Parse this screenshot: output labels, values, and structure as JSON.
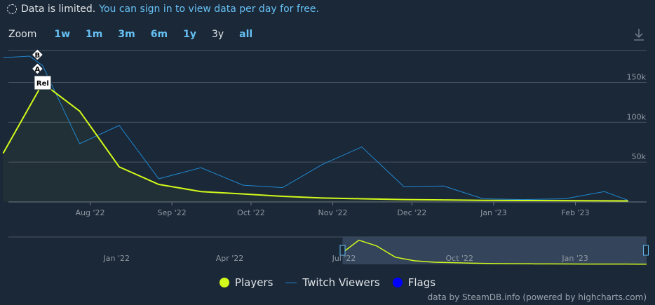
{
  "notice": {
    "text": "Data is limited.",
    "link": "You can sign in to view data per day for free."
  },
  "zoom": {
    "label": "Zoom",
    "options": [
      "1w",
      "1m",
      "3m",
      "6m",
      "1y",
      "3y",
      "all"
    ],
    "active": "3y"
  },
  "icons": {
    "download": "download-icon"
  },
  "colors": {
    "background": "#1b2838",
    "players": "#d2fa1a",
    "twitch": "#1f88d0",
    "flags": "#0000ff",
    "grid": "#4b5563",
    "navigator_mask": "#36475f"
  },
  "chart_data": {
    "type": "line",
    "x_type": "datetime",
    "xlim": [
      "2022-07-01",
      "2023-02-28"
    ],
    "ylim": [
      0,
      190000
    ],
    "ytick_values": [
      50000,
      100000,
      150000
    ],
    "ytick_labels": [
      "50k",
      "100k",
      "150k"
    ],
    "xtick_values": [
      "2022-08-01",
      "2022-09-01",
      "2022-10-01",
      "2022-11-01",
      "2022-12-01",
      "2023-01-01",
      "2023-02-01"
    ],
    "xtick_labels": [
      "Aug '22",
      "Sep '22",
      "Oct '22",
      "Nov '22",
      "Dec '22",
      "Jan '23",
      "Feb '23"
    ],
    "grid": true,
    "legend_position": "bottom",
    "series": [
      {
        "name": "Players",
        "x": [
          "2022-06-29",
          "2022-07-14",
          "2022-07-28",
          "2022-08-12",
          "2022-08-27",
          "2022-09-12",
          "2022-09-28",
          "2022-10-13",
          "2022-10-28",
          "2022-11-12",
          "2022-11-28",
          "2022-12-13",
          "2022-12-28",
          "2023-01-12",
          "2023-01-28",
          "2023-02-12",
          "2023-02-21"
        ],
        "y": [
          61000,
          149000,
          114000,
          44000,
          22000,
          13000,
          10000,
          7000,
          5000,
          4000,
          3000,
          2500,
          2000,
          1800,
          1600,
          1400,
          1300
        ]
      },
      {
        "name": "Twitch Viewers",
        "x": [
          "2022-06-29",
          "2022-07-09",
          "2022-07-14",
          "2022-07-28",
          "2022-08-12",
          "2022-08-27",
          "2022-09-12",
          "2022-09-28",
          "2022-10-13",
          "2022-10-28",
          "2022-11-12",
          "2022-11-28",
          "2022-12-13",
          "2022-12-28",
          "2023-01-12",
          "2023-01-28",
          "2023-02-12",
          "2023-02-21"
        ],
        "y": [
          181000,
          183000,
          171000,
          73000,
          96000,
          29000,
          43000,
          21000,
          18000,
          47000,
          69000,
          19000,
          20000,
          4000,
          3000,
          4000,
          13000,
          2000
        ]
      }
    ],
    "flags": [
      {
        "x": "2022-07-12",
        "label": "B"
      },
      {
        "x": "2022-07-12",
        "label": "A"
      },
      {
        "x": "2022-07-14",
        "label": "Rel"
      }
    ],
    "navigator": {
      "xtick_values": [
        "2022-01-01",
        "2022-04-01",
        "2022-07-01",
        "2022-10-01",
        "2023-01-01"
      ],
      "xtick_labels": [
        "Jan '22",
        "Apr '22",
        "Jul '22",
        "Oct '22",
        "Jan '23"
      ],
      "selected_range": [
        "2022-07-01",
        "2023-02-28"
      ]
    }
  },
  "legend": {
    "items": [
      {
        "label": "Players",
        "color": "#d2fa1a",
        "symbol": "dot"
      },
      {
        "label": "Twitch Viewers",
        "color": "#1f88d0",
        "symbol": "line"
      },
      {
        "label": "Flags",
        "color": "#0000ff",
        "symbol": "dot"
      }
    ]
  },
  "credits": "data by SteamDB.info (powered by highcharts.com)"
}
